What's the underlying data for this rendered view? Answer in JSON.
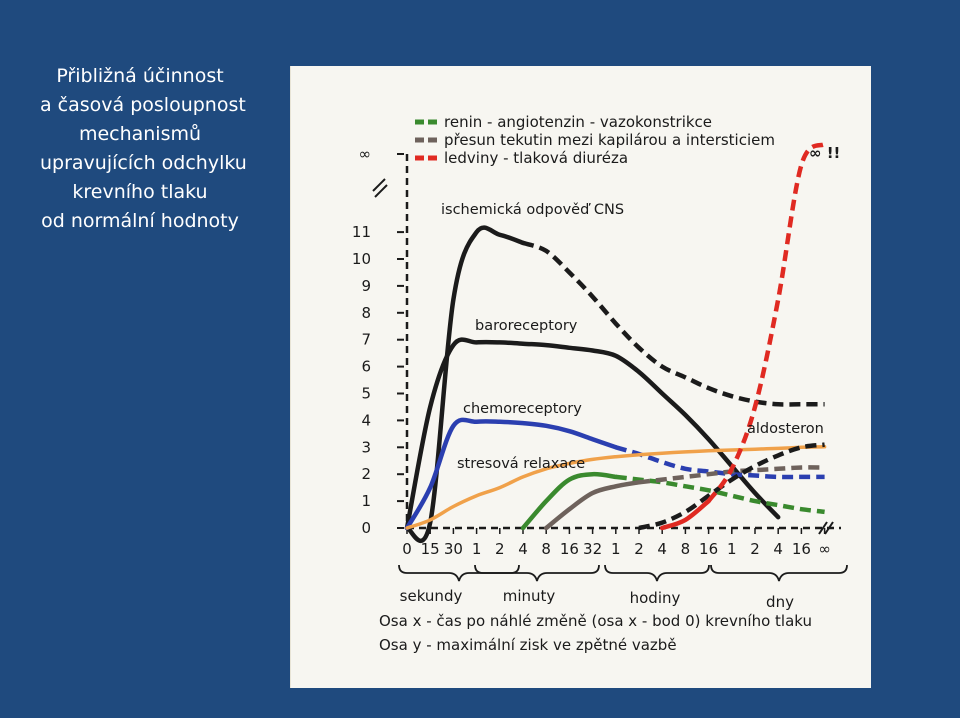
{
  "side_title": {
    "lines": [
      "Přibližná účinnost",
      "a časová posloupnost",
      "mechanismů",
      "upravujících odchylku",
      "krevního tlaku",
      "od  normální hodnoty"
    ]
  },
  "chart_data": {
    "type": "line",
    "legend": [
      {
        "label": "renin - angiotenzin - vazokonstrikce",
        "color": "#3a8a2e"
      },
      {
        "label": "přesun tekutin mezi kapilárou a intersticiem",
        "color": "#6e625c"
      },
      {
        "label": "ledviny - tlaková diuréza",
        "color": "#e02a22"
      }
    ],
    "y_ticks": [
      "0",
      "1",
      "2",
      "3",
      "4",
      "5",
      "6",
      "7",
      "8",
      "9",
      "10",
      "11",
      "∞"
    ],
    "x_ticks": [
      "0",
      "15",
      "30",
      "1",
      "2",
      "4",
      "8",
      "16",
      "32",
      "1",
      "2",
      "4",
      "8",
      "16",
      "1",
      "2",
      "4",
      "16",
      "∞"
    ],
    "x_groups": [
      "sekundy",
      "minuty",
      "hodiny",
      "dny"
    ],
    "series": [
      {
        "name": "ischemická odpověď CNS",
        "color": "#1b1b1b",
        "x": [
          "0",
          "15",
          "30",
          "1",
          "2",
          "4",
          "8",
          "16",
          "32",
          "1",
          "2",
          "4",
          "8",
          "16",
          "1",
          "2",
          "4",
          "16",
          "∞"
        ],
        "values": [
          0,
          0.2,
          8.5,
          11,
          10.9,
          10.6,
          10.3,
          9.5,
          8.6,
          7.6,
          6.7,
          6.0,
          5.6,
          5.2,
          4.9,
          4.7,
          4.6,
          4.6,
          4.6
        ]
      },
      {
        "name": "baroreceptory",
        "color": "#1b1b1b",
        "x": [
          "0",
          "15",
          "30",
          "1",
          "2",
          "4",
          "8",
          "16",
          "32",
          "1",
          "2",
          "4",
          "8",
          "16",
          "1",
          "2",
          "4"
        ],
        "values": [
          0,
          4.5,
          6.8,
          6.9,
          6.9,
          6.85,
          6.8,
          6.7,
          6.6,
          6.4,
          5.8,
          5.0,
          4.2,
          3.3,
          2.3,
          1.3,
          0.4
        ]
      },
      {
        "name": "chemoreceptory",
        "color": "#2b3fb0",
        "x": [
          "0",
          "15",
          "30",
          "1",
          "2",
          "4",
          "8",
          "16",
          "32",
          "1",
          "2",
          "4",
          "8",
          "16",
          "1",
          "2",
          "4",
          "16",
          "∞"
        ],
        "values": [
          0,
          1.5,
          3.8,
          3.95,
          3.95,
          3.9,
          3.8,
          3.6,
          3.3,
          3.0,
          2.75,
          2.45,
          2.2,
          2.1,
          2.0,
          1.95,
          1.9,
          1.9,
          1.9
        ]
      },
      {
        "name": "stresová relaxace",
        "color": "#f0a14a",
        "x": [
          "0",
          "15",
          "30",
          "1",
          "2",
          "4",
          "8",
          "16",
          "32",
          "1",
          "2",
          "4",
          "8",
          "16",
          "1",
          "2",
          "4",
          "16",
          "∞"
        ],
        "values": [
          0,
          0.3,
          0.8,
          1.2,
          1.5,
          1.9,
          2.2,
          2.4,
          2.55,
          2.65,
          2.72,
          2.78,
          2.83,
          2.87,
          2.9,
          2.93,
          2.96,
          3.0,
          3.02
        ]
      },
      {
        "name": "renin - angiotenzin - vazokonstrikce",
        "color": "#3a8a2e",
        "x": [
          "4",
          "8",
          "16",
          "32",
          "1",
          "2",
          "4",
          "8",
          "16",
          "1",
          "2",
          "4",
          "16",
          "∞"
        ],
        "values": [
          0,
          1.0,
          1.8,
          2.0,
          1.9,
          1.8,
          1.7,
          1.55,
          1.4,
          1.2,
          1.0,
          0.85,
          0.7,
          0.6
        ]
      },
      {
        "name": "přesun tekutin mezi kapilárou a intersticiem",
        "color": "#6e625c",
        "x": [
          "8",
          "16",
          "32",
          "1",
          "2",
          "4",
          "8",
          "16",
          "1",
          "2",
          "4",
          "16",
          "∞"
        ],
        "values": [
          0,
          0.7,
          1.3,
          1.55,
          1.7,
          1.8,
          1.9,
          2.0,
          2.1,
          2.15,
          2.2,
          2.25,
          2.25
        ]
      },
      {
        "name": "aldosteron",
        "color": "#1b1b1b",
        "x": [
          "2",
          "4",
          "8",
          "16",
          "1",
          "2",
          "4",
          "16",
          "∞"
        ],
        "values": [
          0,
          0.2,
          0.6,
          1.2,
          1.8,
          2.3,
          2.7,
          3.0,
          3.1
        ]
      },
      {
        "name": "ledviny - tlaková diuréza",
        "color": "#e02a22",
        "x": [
          "4",
          "8",
          "16",
          "1",
          "2",
          "4",
          "16",
          "∞"
        ],
        "values": [
          0,
          0.3,
          1.0,
          2.2,
          4.5,
          8.5,
          13.5,
          14.5
        ]
      }
    ],
    "annotations": {
      "cns": "ischemická odpověď CNS",
      "baro": "baroreceptory",
      "chemo": "chemoreceptory",
      "stres": "stresová relaxace",
      "aldo": "aldosteron",
      "inf_mark": "∞ !!"
    },
    "axis_note_x": "Osa x - čas po náhlé změně (osa x - bod 0) krevního tlaku",
    "axis_note_y": "Osa y - maximální zisk ve zpětné vazbě"
  }
}
